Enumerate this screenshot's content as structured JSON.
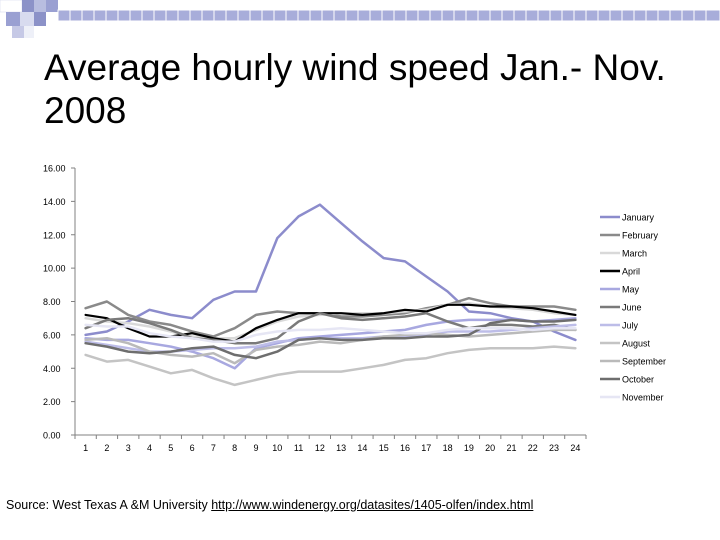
{
  "slide": {
    "title": "Average hourly wind speed Jan.- Nov. 2008",
    "source_text": "Source: West Texas A &M University",
    "source_link": "http://www.windenergy.org/datasites/1405-olfen/index.html"
  },
  "chart_data": {
    "type": "line",
    "title": "",
    "xlabel": "",
    "ylabel": "",
    "ylim": [
      0,
      16
    ],
    "y_ticks": [
      "0.00",
      "2.00",
      "4.00",
      "6.00",
      "8.00",
      "10.00",
      "12.00",
      "14.00",
      "16.00"
    ],
    "x": [
      1,
      2,
      3,
      4,
      5,
      6,
      7,
      8,
      9,
      10,
      11,
      12,
      13,
      14,
      15,
      16,
      17,
      18,
      19,
      20,
      21,
      22,
      23,
      24
    ],
    "grid": false,
    "legend_position": "right",
    "series": [
      {
        "name": "January",
        "color": "#8c8ccc",
        "values": [
          6.0,
          6.2,
          6.8,
          7.5,
          7.2,
          7.0,
          8.1,
          8.6,
          8.6,
          11.8,
          13.1,
          13.8,
          12.7,
          11.6,
          10.6,
          10.4,
          9.5,
          8.6,
          7.4,
          7.3,
          7.0,
          6.8,
          6.2,
          5.7
        ]
      },
      {
        "name": "February",
        "color": "#8a8a8a",
        "values": [
          7.6,
          8.0,
          7.2,
          6.8,
          6.6,
          6.2,
          5.9,
          6.4,
          7.2,
          7.4,
          7.3,
          7.3,
          7.1,
          7.1,
          7.2,
          7.3,
          7.6,
          7.8,
          8.2,
          7.9,
          7.7,
          7.7,
          7.7,
          7.5
        ]
      },
      {
        "name": "March",
        "color": "#d9d9d9",
        "values": [
          7.0,
          6.8,
          6.7,
          6.5,
          6.2,
          5.9,
          5.8,
          5.8,
          6.3,
          6.8,
          7.1,
          7.2,
          7.3,
          7.3,
          7.3,
          7.4,
          7.5,
          7.8,
          7.9,
          7.7,
          7.6,
          7.5,
          7.3,
          7.2
        ]
      },
      {
        "name": "April",
        "color": "#000000",
        "values": [
          7.2,
          7.0,
          6.4,
          5.9,
          5.9,
          6.1,
          5.8,
          5.6,
          6.4,
          6.9,
          7.3,
          7.3,
          7.3,
          7.2,
          7.3,
          7.5,
          7.4,
          7.8,
          7.8,
          7.7,
          7.7,
          7.6,
          7.4,
          7.2
        ]
      },
      {
        "name": "May",
        "color": "#a8a8e0",
        "values": [
          5.8,
          5.7,
          5.7,
          5.5,
          5.3,
          5.0,
          4.6,
          4.0,
          5.2,
          5.5,
          5.8,
          5.9,
          6.0,
          6.1,
          6.2,
          6.3,
          6.6,
          6.8,
          6.9,
          6.9,
          6.9,
          6.8,
          6.9,
          7.0
        ]
      },
      {
        "name": "June",
        "color": "#7a7a7a",
        "values": [
          6.4,
          6.9,
          7.0,
          6.7,
          6.3,
          5.8,
          5.7,
          5.5,
          5.5,
          5.8,
          6.8,
          7.3,
          7.0,
          6.9,
          7.0,
          7.1,
          7.3,
          6.8,
          6.4,
          6.6,
          6.6,
          6.5,
          6.6,
          6.3
        ]
      },
      {
        "name": "July",
        "color": "#bdbde8",
        "values": [
          5.6,
          5.4,
          5.2,
          5.0,
          5.0,
          5.1,
          5.2,
          5.2,
          5.3,
          5.6,
          5.7,
          5.8,
          5.8,
          5.8,
          5.9,
          5.9,
          6.0,
          6.2,
          6.2,
          6.2,
          6.3,
          6.4,
          6.5,
          6.6
        ]
      },
      {
        "name": "August",
        "color": "#c4c4c4",
        "values": [
          4.8,
          4.4,
          4.5,
          4.1,
          3.7,
          3.9,
          3.4,
          3.0,
          3.3,
          3.6,
          3.8,
          3.8,
          3.8,
          4.0,
          4.2,
          4.5,
          4.6,
          4.9,
          5.1,
          5.2,
          5.2,
          5.2,
          5.3,
          5.2
        ]
      },
      {
        "name": "September",
        "color": "#bababa",
        "values": [
          5.7,
          5.8,
          5.5,
          5.0,
          4.8,
          4.7,
          4.9,
          4.3,
          5.1,
          5.3,
          5.4,
          5.6,
          5.5,
          5.7,
          5.9,
          6.0,
          6.1,
          6.0,
          5.9,
          6.0,
          6.1,
          6.2,
          6.3,
          6.3
        ]
      },
      {
        "name": "October",
        "color": "#6e6e6e",
        "values": [
          5.5,
          5.3,
          5.0,
          4.9,
          5.0,
          5.2,
          5.3,
          4.8,
          4.6,
          5.0,
          5.7,
          5.8,
          5.7,
          5.7,
          5.8,
          5.8,
          5.9,
          5.9,
          6.0,
          6.7,
          6.9,
          6.8,
          6.8,
          6.9
        ]
      },
      {
        "name": "November",
        "color": "#e6e6f4",
        "values": [
          6.6,
          6.5,
          6.5,
          6.1,
          5.9,
          5.8,
          5.6,
          5.6,
          6.0,
          6.2,
          6.3,
          6.3,
          6.4,
          6.3,
          6.2,
          6.1,
          6.1,
          6.3,
          6.4,
          6.4,
          6.4,
          6.3,
          6.4,
          6.4
        ]
      }
    ]
  }
}
